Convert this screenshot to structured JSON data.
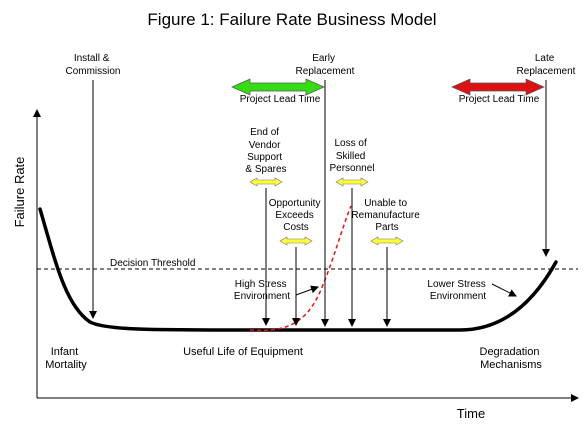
{
  "title": "Figure 1: Failure Rate Business Model",
  "axes": {
    "y_label": "Failure Rate",
    "x_label": "Time"
  },
  "threshold_label": "Decision Threshold",
  "events": {
    "install": [
      "Install &",
      "Commission"
    ],
    "early_replacement": [
      "Early",
      "Replacement"
    ],
    "late_replacement": [
      "Late",
      "Replacement"
    ],
    "end_of_vendor_support": [
      "End of",
      "Vendor",
      "Support",
      "& Spares"
    ],
    "loss_of_skilled_personnel": [
      "Loss of",
      "Skilled",
      "Personnel"
    ],
    "opportunity_exceeds_costs": [
      "Opportunity",
      "Exceeds",
      "Costs"
    ],
    "unable_to_remanufacture": [
      "Unable to",
      "Remanufacture",
      "Parts"
    ],
    "high_stress": [
      "High Stress",
      "Environment"
    ],
    "lower_stress": [
      "Lower Stress",
      "Environment"
    ]
  },
  "lead_time": {
    "early_label": "Project Lead Time",
    "late_label": "Project Lead Time"
  },
  "phases": {
    "infant": [
      "Infant",
      "Mortality"
    ],
    "useful": "Useful Life of Equipment",
    "degradation": [
      "Degradation",
      "Mechanisms"
    ]
  },
  "colors": {
    "early_arrow": "#33dd11",
    "late_arrow": "#dd1111",
    "small_arrow": "#ffff33",
    "dashed_curve": "#ee1111"
  }
}
